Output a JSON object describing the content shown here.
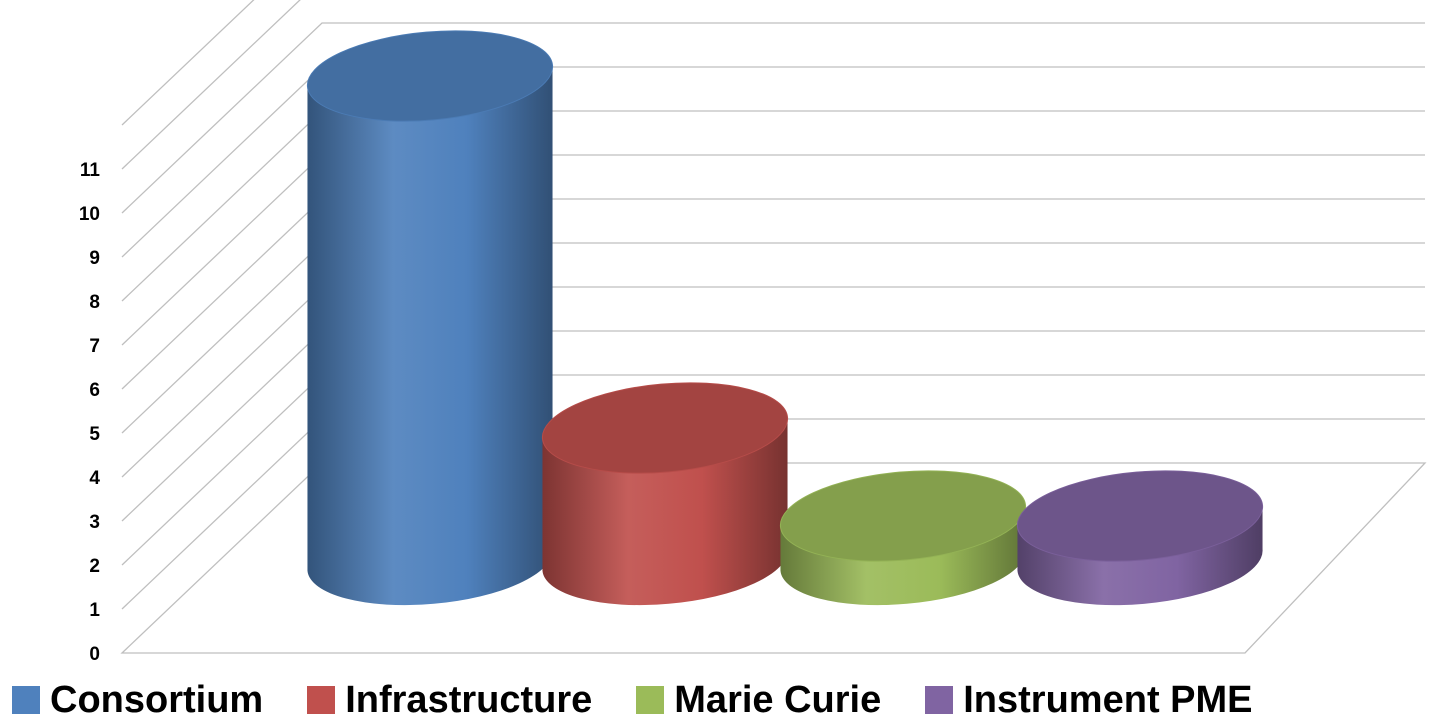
{
  "chart_data": {
    "type": "bar",
    "style": "3d-cylinder",
    "categories": [
      "Consortium",
      "Infrastructure",
      "Marie Curie",
      "Instrument PME"
    ],
    "values": [
      11,
      3,
      1,
      1
    ],
    "colors": [
      "#4F81BD",
      "#C0504D",
      "#9BBB59",
      "#8064A2"
    ],
    "title": "",
    "xlabel": "",
    "ylabel": "",
    "ylim": [
      0,
      11
    ],
    "yticks": [
      0,
      1,
      2,
      3,
      4,
      5,
      6,
      7,
      8,
      9,
      10,
      11
    ],
    "grid": true,
    "legend": "bottom"
  },
  "legend": {
    "items": [
      {
        "label": "Consortium",
        "color": "#4F81BD"
      },
      {
        "label": "Infrastructure",
        "color": "#C0504D"
      },
      {
        "label": "Marie Curie",
        "color": "#9BBB59"
      },
      {
        "label": "Instrument PME",
        "color": "#8064A2"
      }
    ]
  }
}
